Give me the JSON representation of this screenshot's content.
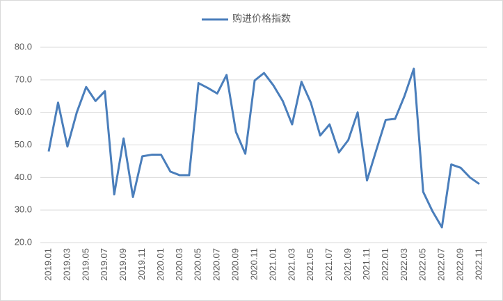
{
  "chart_data": {
    "type": "line",
    "categories": [
      "2019.01",
      null,
      "2019.03",
      null,
      "2019.05",
      null,
      "2019.07",
      null,
      "2019.09",
      null,
      "2019.11",
      null,
      "2020.01",
      null,
      "2020.03",
      null,
      "2020.05",
      null,
      "2020.07",
      null,
      "2020.09",
      null,
      "2020.11",
      null,
      "2021.01",
      null,
      "2021.03",
      null,
      "2021.05",
      null,
      "2021.07",
      null,
      "2021.09",
      null,
      "2021.11",
      null,
      "2022.01",
      null,
      "2022.03",
      null,
      "2022.05",
      null,
      "2022.07",
      null,
      "2022.09",
      null,
      "2022.11"
    ],
    "series": [
      {
        "name": "购进价格指数",
        "color": "#4a7ebb",
        "values": [
          48,
          63,
          49.5,
          60,
          67.8,
          63.5,
          66.5,
          34.8,
          52,
          34,
          46.5,
          47,
          47,
          41.8,
          40.7,
          40.7,
          69,
          67.5,
          65.8,
          71.5,
          54,
          47.3,
          69.8,
          72.1,
          68.3,
          63.5,
          56.3,
          69.4,
          63,
          52.9,
          56.3,
          47.7,
          51.5,
          60,
          39.1,
          48.5,
          57.7,
          58,
          65,
          73.4,
          35.6,
          29.6,
          24.7,
          44,
          43,
          40,
          38
        ]
      }
    ],
    "ylim": [
      20,
      80
    ],
    "yticks": [
      {
        "value": 20,
        "label": "20.0"
      },
      {
        "value": 30,
        "label": "30.0"
      },
      {
        "value": 40,
        "label": "40.0"
      },
      {
        "value": 50,
        "label": "50.0"
      },
      {
        "value": 60,
        "label": "60.0"
      },
      {
        "value": 70,
        "label": "70.0"
      },
      {
        "value": 80,
        "label": "80.0"
      }
    ],
    "grid": true,
    "legend": "top"
  }
}
